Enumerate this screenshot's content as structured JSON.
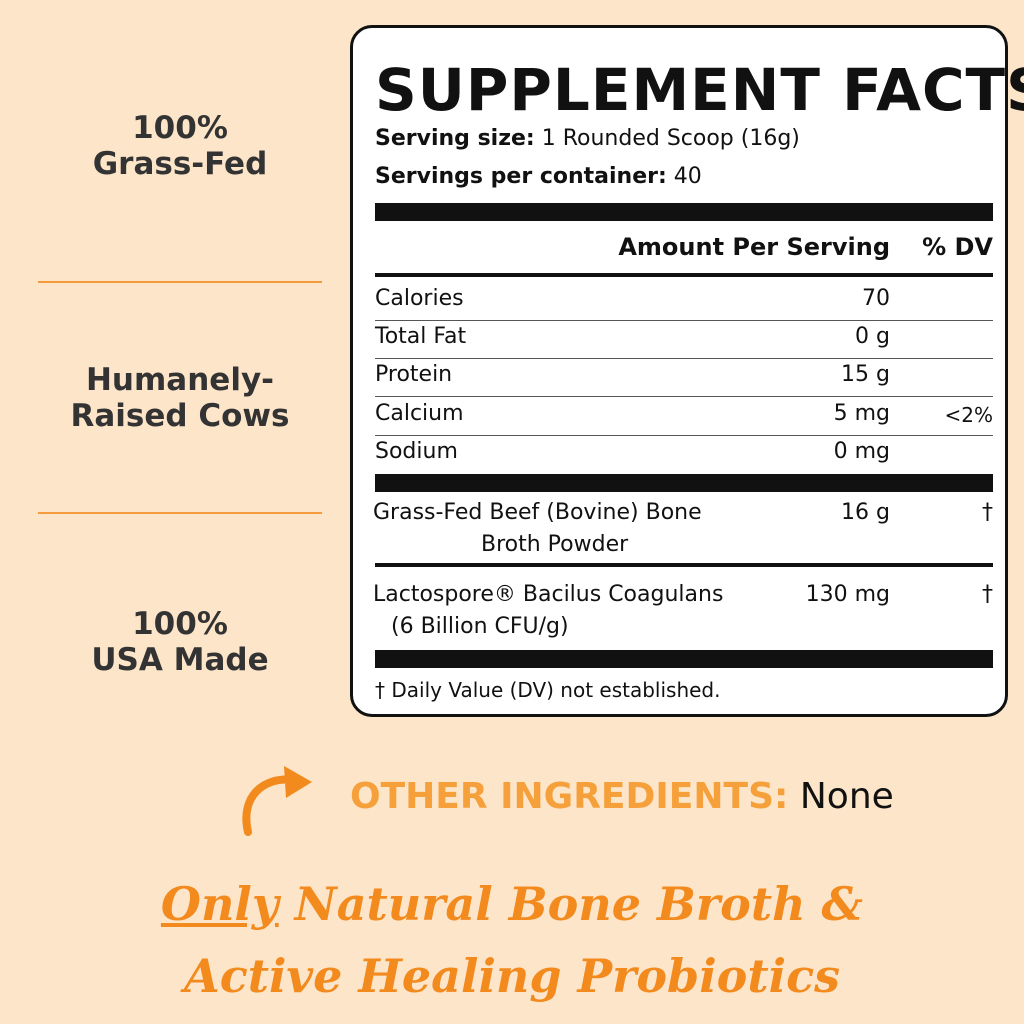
{
  "features": [
    {
      "lines": [
        "100%",
        "Grass-Fed"
      ]
    },
    {
      "lines": [
        "Humanely-",
        "Raised Cows"
      ]
    },
    {
      "lines": [
        "100%",
        "USA Made"
      ]
    }
  ],
  "label": {
    "title": "SUPPLEMENT FACTS",
    "serving_size": {
      "label": "Serving size:",
      "value": "1 Rounded Scoop (16g)"
    },
    "servings_per_container": {
      "label": "Servings per container:",
      "value": "40"
    },
    "header": {
      "amount": "Amount Per Serving",
      "dv": "% DV"
    },
    "rows": [
      {
        "name": "Calories",
        "amount": "70"
      },
      {
        "name": "Total Fat",
        "amount": "0 g"
      },
      {
        "name": "Protein",
        "amount": "15 g"
      },
      {
        "name": "Calcium",
        "amount": "5 mg",
        "dv": "<2%"
      },
      {
        "name": "Sodium",
        "amount": "0 mg"
      }
    ],
    "ingredients": [
      {
        "name_lines": [
          "Grass-Fed Beef (Bovine) Bone",
          "Broth Powder"
        ],
        "amount": "16 g",
        "dv": "†"
      },
      {
        "name_lines": [
          "Lactospore®  Bacilus Coagulans",
          "(6 Billion CFU/g)"
        ],
        "amount": "130 mg",
        "dv": "†"
      }
    ],
    "footnote": "† Daily Value (DV) not established."
  },
  "other_ingredients": {
    "label": "OTHER INGREDIENTS:",
    "value": "None"
  },
  "tagline": {
    "underlined": "Only",
    "rest": " Natural Bone Broth &",
    "line2": "Active Healing Probiotics"
  }
}
